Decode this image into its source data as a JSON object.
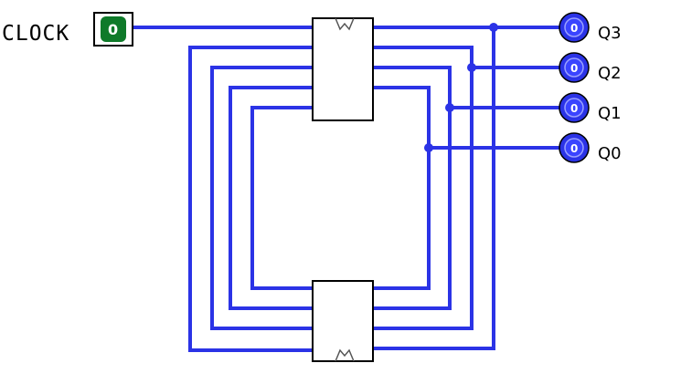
{
  "clock": {
    "label": "CLOCK",
    "value": "0"
  },
  "outputs": [
    {
      "label": "Q3",
      "value": "0"
    },
    {
      "label": "Q2",
      "value": "0"
    },
    {
      "label": "Q1",
      "value": "0"
    },
    {
      "label": "Q0",
      "value": "0"
    }
  ],
  "colors": {
    "wire": "#2b33e6",
    "clock_button": "#0f7a2a",
    "probe": "#2b33e6"
  },
  "icons": {
    "clock_input": "clock-toggle-icon",
    "probe": "output-probe-icon",
    "clock_edge_marker": "clock-edge-icon"
  }
}
